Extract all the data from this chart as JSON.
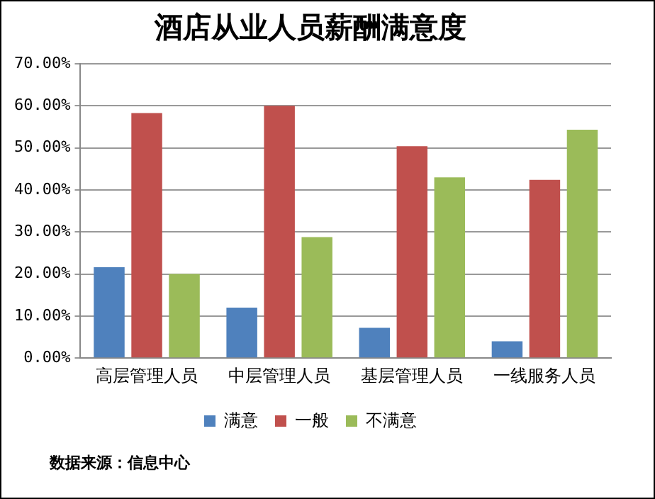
{
  "chart_data": {
    "type": "bar",
    "title": "酒店从业人员薪酬满意度",
    "categories": [
      "高层管理人员",
      "中层管理人员",
      "基层管理人员",
      "一线服务人员"
    ],
    "series": [
      {
        "name": "满意",
        "color": "#4f81bd",
        "values": [
          21.6,
          12.0,
          7.2,
          4.0
        ]
      },
      {
        "name": "一般",
        "color": "#c0504d",
        "values": [
          58.3,
          60.0,
          50.4,
          42.4
        ]
      },
      {
        "name": "不满意",
        "color": "#9bbb59",
        "values": [
          20.0,
          28.8,
          43.0,
          54.3
        ]
      }
    ],
    "ylim": [
      0,
      70
    ],
    "yticks": [
      {
        "value": 0,
        "label": "0.00%"
      },
      {
        "value": 10,
        "label": "10.00%"
      },
      {
        "value": 20,
        "label": "20.00%"
      },
      {
        "value": 30,
        "label": "30.00%"
      },
      {
        "value": 40,
        "label": "40.00%"
      },
      {
        "value": 50,
        "label": "50.00%"
      },
      {
        "value": 60,
        "label": "60.00%"
      },
      {
        "value": 70,
        "label": "70.00%"
      }
    ],
    "grid": "y",
    "legend": "bottom",
    "annotations": [
      "数据来源：信息中心"
    ]
  }
}
